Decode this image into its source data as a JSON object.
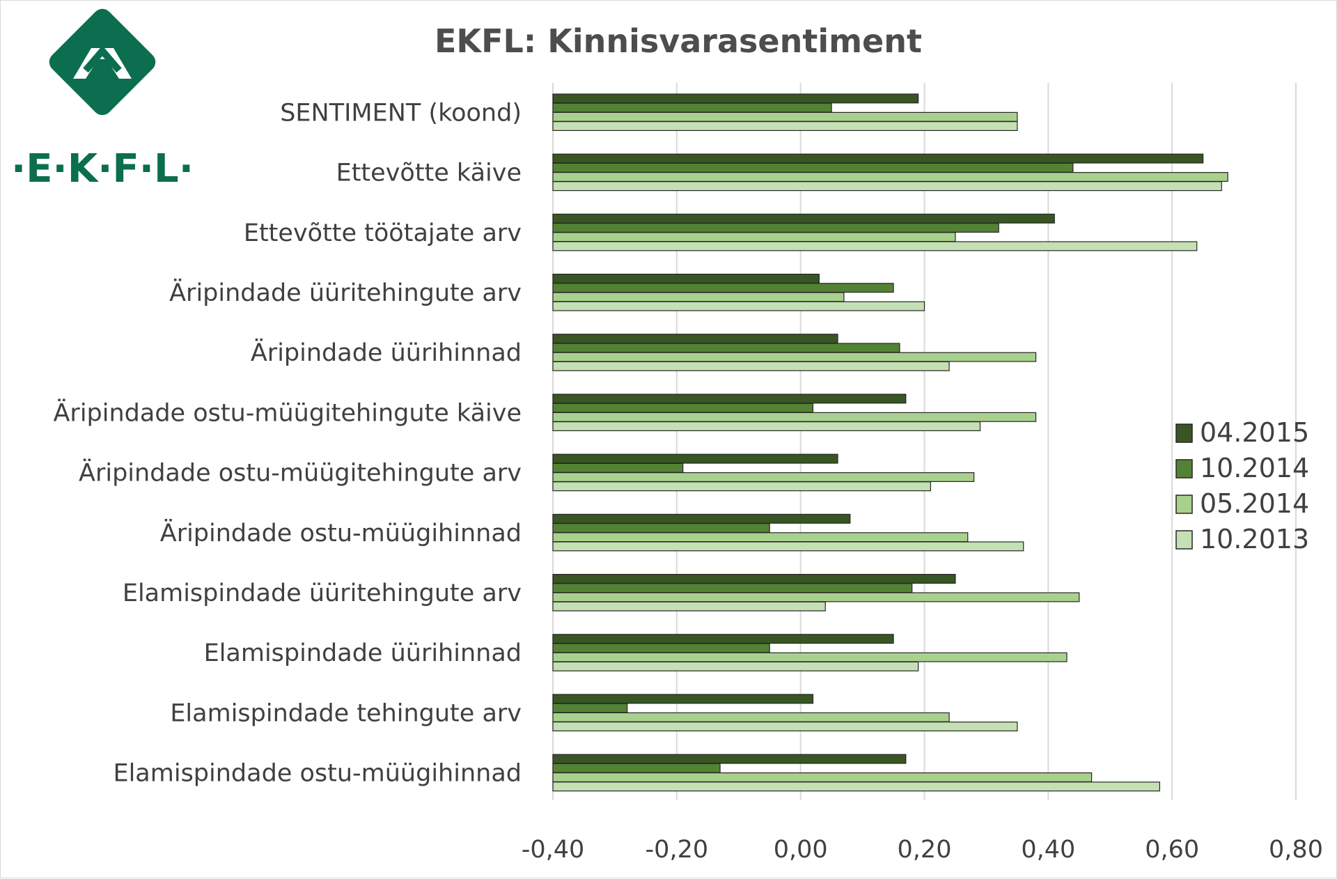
{
  "logo": {
    "text": "·E·K·F·L·",
    "color": "#0b6e4f"
  },
  "chart_data": {
    "type": "bar",
    "orientation": "horizontal",
    "title": "EKFL: Kinnisvarasentiment",
    "categories": [
      "SENTIMENT (koond)",
      "Ettevõtte käive",
      "Ettevõtte töötajate arv",
      "Äripindade üüritehingute arv",
      "Äripindade üürihinnad",
      "Äripindade ostu-müügitehingute käive",
      "Äripindade ostu-müügitehingute arv",
      "Äripindade ostu-müügihinnad",
      "Elamispindade üüritehingute arv",
      "Elamispindade üürihinnad",
      "Elamispindade tehingute arv",
      "Elamispindade ostu-müügihinnad"
    ],
    "series": [
      {
        "name": "04.2015",
        "color": "#375623",
        "values": [
          0.19,
          0.65,
          0.41,
          0.03,
          0.06,
          0.17,
          0.06,
          0.08,
          0.25,
          0.15,
          0.02,
          0.17
        ]
      },
      {
        "name": "10.2014",
        "color": "#548235",
        "values": [
          0.05,
          0.44,
          0.32,
          0.15,
          0.16,
          0.02,
          -0.19,
          -0.05,
          0.18,
          -0.05,
          -0.28,
          -0.13
        ]
      },
      {
        "name": "05.2014",
        "color": "#a9d18e",
        "values": [
          0.35,
          0.69,
          0.25,
          0.07,
          0.38,
          0.38,
          0.28,
          0.27,
          0.45,
          0.43,
          0.24,
          0.47
        ]
      },
      {
        "name": "10.2013",
        "color": "#c5e0b4",
        "values": [
          0.35,
          0.68,
          0.64,
          0.2,
          0.24,
          0.29,
          0.21,
          0.36,
          0.04,
          0.19,
          0.35,
          0.58
        ]
      }
    ],
    "xlim": [
      -0.4,
      0.8
    ],
    "xticks": [
      -0.4,
      -0.2,
      0.0,
      0.2,
      0.4,
      0.6,
      0.8
    ],
    "xtick_labels": [
      "-0,40",
      "-0,20",
      "0,00",
      "0,20",
      "0,40",
      "0,60",
      "0,80"
    ],
    "grid": true,
    "legend_position": "right"
  }
}
